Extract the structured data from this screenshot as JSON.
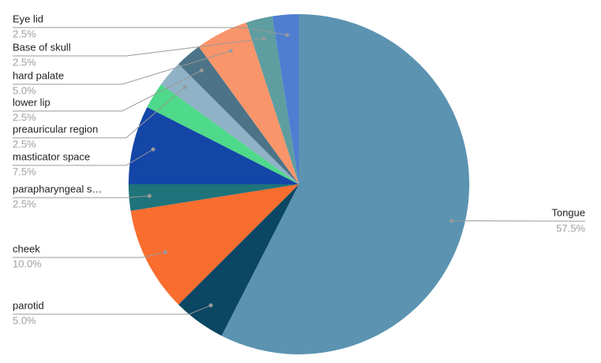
{
  "chart_data": {
    "type": "pie",
    "categories": [
      "Tongue",
      "parotid",
      "cheek",
      "parapharyngeal s…",
      "masticator space",
      null,
      "preauricular region",
      "lower lip",
      "hard palate",
      "Base of skull",
      "Eye lid"
    ],
    "values": [
      57.5,
      5.0,
      10.0,
      2.5,
      7.5,
      2.5,
      2.5,
      2.5,
      5.0,
      2.5,
      2.5
    ],
    "value_labels": [
      "57.5%",
      "5.0%",
      "10.0%",
      "2.5%",
      "7.5%",
      null,
      "2.5%",
      "2.5%",
      "5.0%",
      "2.5%",
      "2.5%"
    ],
    "colors": [
      "#5b93b1",
      "#0b4662",
      "#f96d2f",
      "#1f737a",
      "#1446a8",
      "#4fd98a",
      "#8fb2c6",
      "#4c7387",
      "#f9956a",
      "#5e9ea0",
      "#4f7ed1"
    ]
  }
}
